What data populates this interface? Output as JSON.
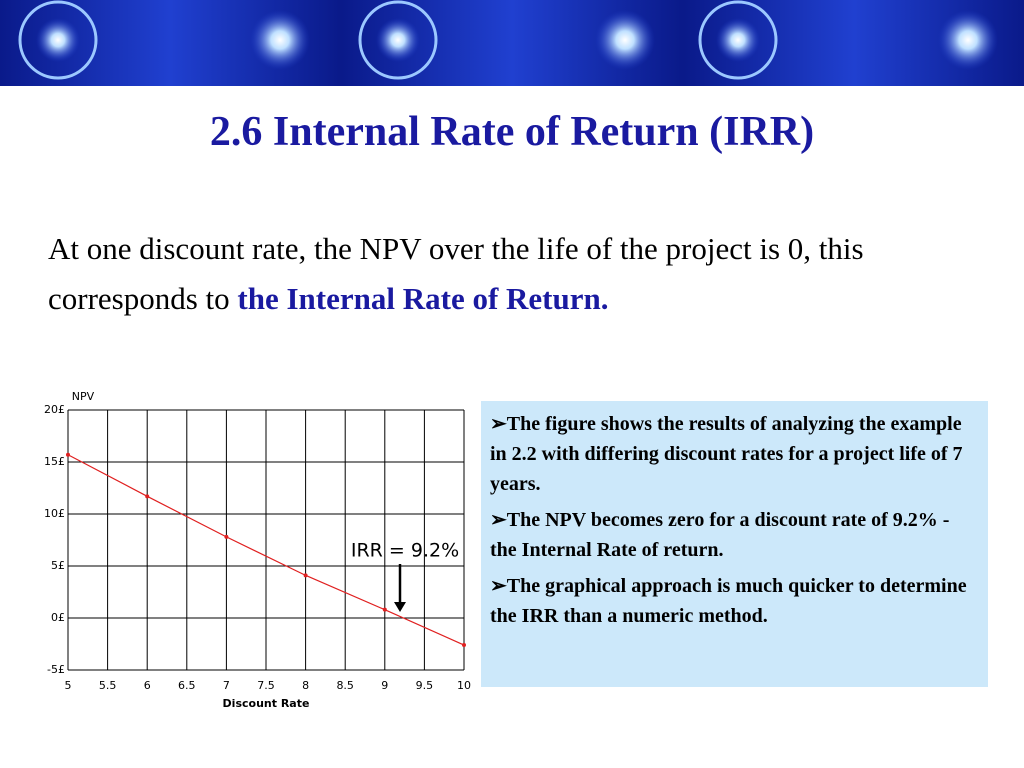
{
  "slide": {
    "title": "2.6 Internal Rate of Return (IRR)",
    "intro": "At one discount rate,  the NPV over the life of the project is 0,  this corresponds to ",
    "intro_emphasis": "the Internal Rate of Return.",
    "bullets": [
      "The  figure shows the results of analyzing the example  in 2.2 with differing discount rates for a project life of 7 years.",
      "The NPV becomes zero for a discount rate of  9.2% - the Internal Rate of return.",
      "The graphical approach is much quicker to determine the IRR than a numeric method."
    ]
  },
  "chart_data": {
    "type": "line",
    "y_label": "NPV",
    "x_label": "Discount Rate",
    "annotation": "IRR = 9.2%",
    "x": [
      5,
      6,
      7,
      8,
      9,
      10
    ],
    "series": [
      {
        "name": "NPV",
        "color": "#e02020",
        "values": [
          15.7,
          11.7,
          7.8,
          4.1,
          0.8,
          -2.6
        ]
      }
    ],
    "xlim": [
      5,
      10
    ],
    "xticks": [
      5,
      5.5,
      6,
      6.5,
      7,
      7.5,
      8,
      8.5,
      9,
      9.5,
      10
    ],
    "ylim": [
      -5,
      20
    ],
    "yticks": [
      {
        "value": -5,
        "label": "-5£"
      },
      {
        "value": 0,
        "label": "0£"
      },
      {
        "value": 5,
        "label": "5£"
      },
      {
        "value": 10,
        "label": "10£"
      },
      {
        "value": 15,
        "label": "15£"
      },
      {
        "value": 20,
        "label": "20£"
      }
    ],
    "grid": true
  }
}
